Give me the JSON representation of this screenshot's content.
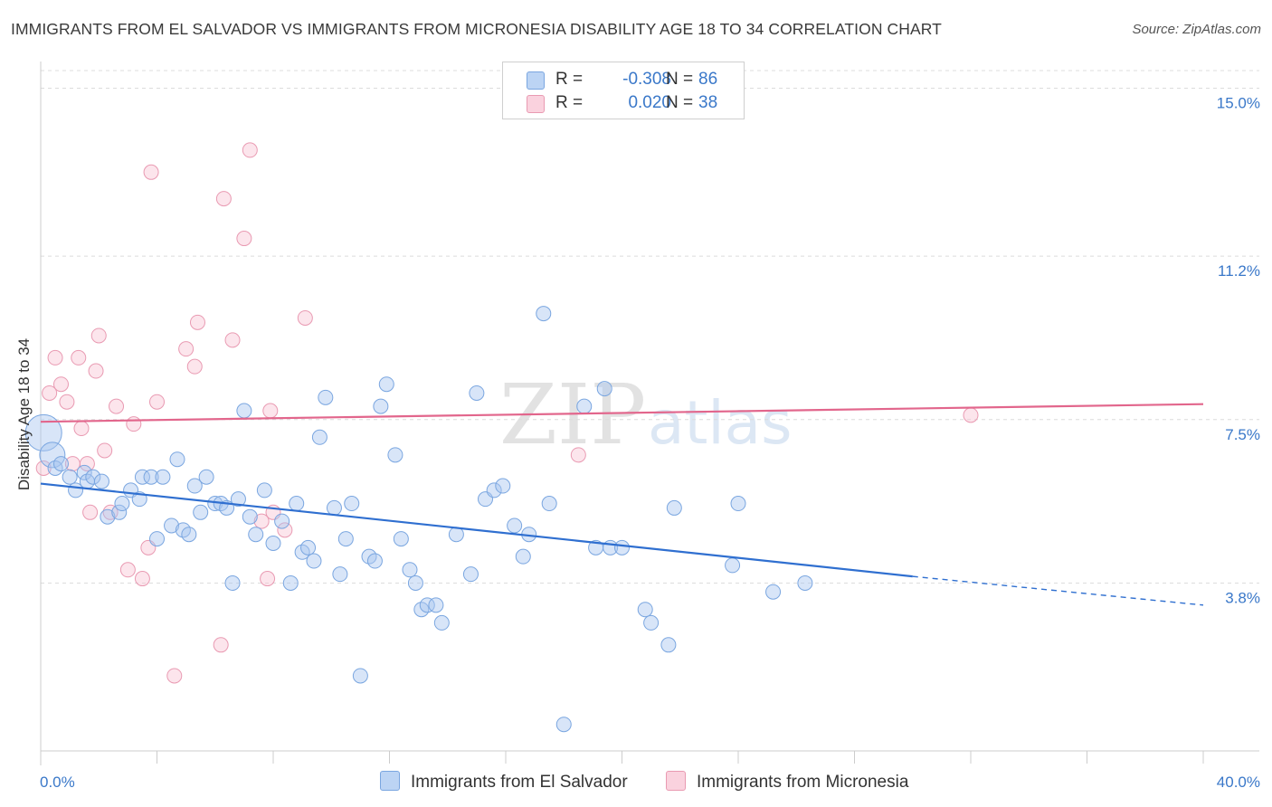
{
  "title": "IMMIGRANTS FROM EL SALVADOR VS IMMIGRANTS FROM MICRONESIA DISABILITY AGE 18 TO 34 CORRELATION CHART",
  "source": "Source: ZipAtlas.com",
  "watermark": {
    "zip": "ZIP",
    "atlas": "atlas"
  },
  "legend": {
    "rows": [
      {
        "r_label": "R =",
        "r_value": "-0.308",
        "n_label": "N =",
        "n_value": "86",
        "color": "#a9c8f0",
        "border": "#7aa6e0"
      },
      {
        "r_label": "R =",
        "r_value": "0.020",
        "n_label": "N =",
        "n_value": "38",
        "color": "#f7bfd0",
        "border": "#e99ab2"
      }
    ]
  },
  "bottom_legend": {
    "series1": "Immigrants from El Salvador",
    "series2": "Immigrants from Micronesia"
  },
  "colors": {
    "blue_fill": "rgba(168,198,240,0.45)",
    "blue_stroke": "#7aa6e0",
    "blue_line": "#2f6fd0",
    "pink_fill": "rgba(247,190,207,0.40)",
    "pink_stroke": "#e99ab2",
    "pink_line": "#e2668c",
    "tick_text": "#3a78c9"
  },
  "chart_data": {
    "type": "scatter",
    "title": "IMMIGRANTS FROM EL SALVADOR VS IMMIGRANTS FROM MICRONESIA DISABILITY AGE 18 TO 34 CORRELATION CHART",
    "xlabel": "",
    "ylabel": "Disability Age 18 to 34",
    "xlim": [
      0,
      40
    ],
    "ylim": [
      0,
      15.4
    ],
    "x_tick_labels": [
      "0.0%",
      "40.0%"
    ],
    "y_ticks": [
      3.8,
      7.5,
      11.2,
      15.0
    ],
    "y_tick_labels": [
      "3.8%",
      "7.5%",
      "11.2%",
      "15.0%"
    ],
    "grid": "horizontal dashed",
    "legend_position": "top-center",
    "series": [
      {
        "name": "Immigrants from El Salvador",
        "trend": {
          "x0": 0,
          "y0": 6.05,
          "x1": 30,
          "y1": 3.95,
          "dash_to_x": 40,
          "dash_to_y": 3.3
        },
        "points": [
          [
            0.1,
            7.2
          ],
          [
            0.4,
            6.7
          ],
          [
            0.5,
            6.4
          ],
          [
            0.7,
            6.5
          ],
          [
            1.0,
            6.2
          ],
          [
            1.2,
            5.9
          ],
          [
            1.5,
            6.3
          ],
          [
            1.6,
            6.1
          ],
          [
            1.8,
            6.2
          ],
          [
            2.1,
            6.1
          ],
          [
            2.3,
            5.3
          ],
          [
            2.7,
            5.4
          ],
          [
            2.8,
            5.6
          ],
          [
            3.1,
            5.9
          ],
          [
            3.4,
            5.7
          ],
          [
            3.5,
            6.2
          ],
          [
            3.8,
            6.2
          ],
          [
            4.0,
            4.8
          ],
          [
            4.2,
            6.2
          ],
          [
            4.5,
            5.1
          ],
          [
            4.7,
            6.6
          ],
          [
            4.9,
            5.0
          ],
          [
            5.1,
            4.9
          ],
          [
            5.3,
            6.0
          ],
          [
            5.5,
            5.4
          ],
          [
            5.7,
            6.2
          ],
          [
            6.0,
            5.6
          ],
          [
            6.2,
            5.6
          ],
          [
            6.4,
            5.5
          ],
          [
            6.6,
            3.8
          ],
          [
            6.8,
            5.7
          ],
          [
            7.0,
            7.7
          ],
          [
            7.2,
            5.3
          ],
          [
            7.4,
            4.9
          ],
          [
            7.7,
            5.9
          ],
          [
            8.0,
            4.7
          ],
          [
            8.3,
            5.2
          ],
          [
            8.6,
            3.8
          ],
          [
            8.8,
            5.6
          ],
          [
            9.0,
            4.5
          ],
          [
            9.2,
            4.6
          ],
          [
            9.4,
            4.3
          ],
          [
            9.6,
            7.1
          ],
          [
            9.8,
            8.0
          ],
          [
            10.1,
            5.5
          ],
          [
            10.3,
            4.0
          ],
          [
            10.5,
            4.8
          ],
          [
            10.7,
            5.6
          ],
          [
            11.0,
            1.7
          ],
          [
            11.3,
            4.4
          ],
          [
            11.5,
            4.3
          ],
          [
            11.7,
            7.8
          ],
          [
            11.9,
            8.3
          ],
          [
            12.2,
            6.7
          ],
          [
            12.4,
            4.8
          ],
          [
            12.7,
            4.1
          ],
          [
            12.9,
            3.8
          ],
          [
            13.1,
            3.2
          ],
          [
            13.3,
            3.3
          ],
          [
            13.6,
            3.3
          ],
          [
            13.8,
            2.9
          ],
          [
            14.3,
            4.9
          ],
          [
            14.8,
            4.0
          ],
          [
            15.0,
            8.1
          ],
          [
            15.3,
            5.7
          ],
          [
            15.6,
            5.9
          ],
          [
            15.9,
            6.0
          ],
          [
            16.3,
            5.1
          ],
          [
            16.6,
            4.4
          ],
          [
            16.8,
            4.9
          ],
          [
            17.3,
            9.9
          ],
          [
            17.5,
            5.6
          ],
          [
            18.0,
            0.6
          ],
          [
            18.7,
            7.8
          ],
          [
            19.1,
            4.6
          ],
          [
            19.4,
            8.2
          ],
          [
            19.6,
            4.6
          ],
          [
            20.0,
            4.6
          ],
          [
            20.8,
            3.2
          ],
          [
            21.0,
            2.9
          ],
          [
            21.6,
            2.4
          ],
          [
            21.8,
            5.5
          ],
          [
            23.8,
            4.2
          ],
          [
            24.0,
            5.6
          ],
          [
            26.3,
            3.8
          ],
          [
            25.2,
            3.6
          ]
        ]
      },
      {
        "name": "Immigrants from Micronesia",
        "trend": {
          "x0": 0,
          "y0": 7.45,
          "x1": 40,
          "y1": 7.85
        },
        "points": [
          [
            0.1,
            6.4
          ],
          [
            0.3,
            8.1
          ],
          [
            0.5,
            8.9
          ],
          [
            0.7,
            8.3
          ],
          [
            0.9,
            7.9
          ],
          [
            1.1,
            6.5
          ],
          [
            1.3,
            8.9
          ],
          [
            1.4,
            7.3
          ],
          [
            1.6,
            6.5
          ],
          [
            1.7,
            5.4
          ],
          [
            1.9,
            8.6
          ],
          [
            2.0,
            9.4
          ],
          [
            2.2,
            6.8
          ],
          [
            2.4,
            5.4
          ],
          [
            2.6,
            7.8
          ],
          [
            3.0,
            4.1
          ],
          [
            3.2,
            7.4
          ],
          [
            3.5,
            3.9
          ],
          [
            3.7,
            4.6
          ],
          [
            3.8,
            13.1
          ],
          [
            4.0,
            7.9
          ],
          [
            4.6,
            1.7
          ],
          [
            5.0,
            9.1
          ],
          [
            5.3,
            8.7
          ],
          [
            5.4,
            9.7
          ],
          [
            6.2,
            2.4
          ],
          [
            6.3,
            12.5
          ],
          [
            6.6,
            9.3
          ],
          [
            7.0,
            11.6
          ],
          [
            7.2,
            13.6
          ],
          [
            7.8,
            3.9
          ],
          [
            7.9,
            7.7
          ],
          [
            8.0,
            5.4
          ],
          [
            8.4,
            5.0
          ],
          [
            9.1,
            9.8
          ],
          [
            18.5,
            6.7
          ],
          [
            32.0,
            7.6
          ],
          [
            7.6,
            5.2
          ]
        ]
      }
    ]
  }
}
